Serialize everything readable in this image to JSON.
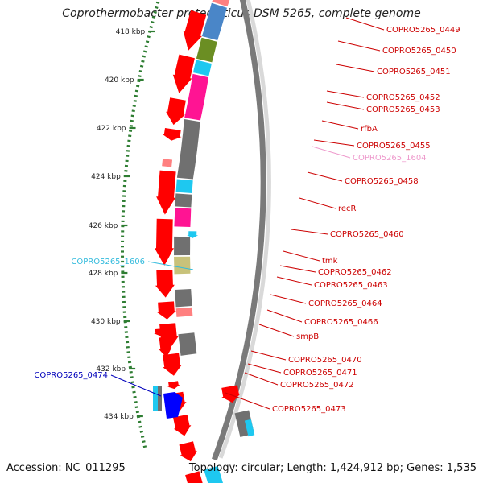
{
  "title": "Coprothermobacter proteolyticus DSM 5265, complete genome",
  "footer": {
    "accession": "Accession: NC_011295",
    "summary": "Topology: circular; Length: 1,424,912 bp; Genes: 1,535"
  },
  "colors": {
    "red": "#ff0000",
    "pink_light": "#ff8080",
    "steelblue": "#4a86c8",
    "olive": "#6b8e23",
    "cyan": "#1ec8f0",
    "magenta": "#ff1493",
    "gray": "#707070",
    "khaki": "#c8c27a",
    "blue": "#0000ff",
    "label_red": "#cc0000",
    "label_pink": "#ee99cc",
    "label_cyan": "#33bbdd",
    "label_blue": "#0000bb",
    "tick_green": "#2e7d32"
  },
  "kbp_ticks": [
    {
      "label": "418 kbp"
    },
    {
      "label": "420 kbp"
    },
    {
      "label": "422 kbp"
    },
    {
      "label": "424 kbp"
    },
    {
      "label": "426 kbp"
    },
    {
      "label": "428 kbp"
    },
    {
      "label": "430 kbp"
    },
    {
      "label": "432 kbp"
    },
    {
      "label": "434 kbp"
    }
  ],
  "gene_labels": [
    {
      "text": "COPRO5265_0449",
      "color": "label_red"
    },
    {
      "text": "COPRO5265_0450",
      "color": "label_red"
    },
    {
      "text": "COPRO5265_0451",
      "color": "label_red"
    },
    {
      "text": "COPRO5265_0452",
      "color": "label_red"
    },
    {
      "text": "COPRO5265_0453",
      "color": "label_red"
    },
    {
      "text": "rfbA",
      "color": "label_red"
    },
    {
      "text": "COPRO5265_0455",
      "color": "label_red"
    },
    {
      "text": "COPRO5265_1604",
      "color": "label_pink"
    },
    {
      "text": "COPRO5265_0458",
      "color": "label_red"
    },
    {
      "text": "recR",
      "color": "label_red"
    },
    {
      "text": "COPRO5265_0460",
      "color": "label_red"
    },
    {
      "text": "tmk",
      "color": "label_red"
    },
    {
      "text": "COPRO5265_0462",
      "color": "label_red"
    },
    {
      "text": "COPRO5265_0463",
      "color": "label_red"
    },
    {
      "text": "COPRO5265_0464",
      "color": "label_red"
    },
    {
      "text": "COPRO5265_0466",
      "color": "label_red"
    },
    {
      "text": "smpB",
      "color": "label_red"
    },
    {
      "text": "COPRO5265_0470",
      "color": "label_red"
    },
    {
      "text": "COPRO5265_0471",
      "color": "label_red"
    },
    {
      "text": "COPRO5265_0472",
      "color": "label_red"
    },
    {
      "text": "COPRO5265_0473",
      "color": "label_red"
    },
    {
      "text": "COPRO5265_1606",
      "color": "label_cyan"
    },
    {
      "text": "COPRO5265_0474",
      "color": "label_blue"
    }
  ]
}
